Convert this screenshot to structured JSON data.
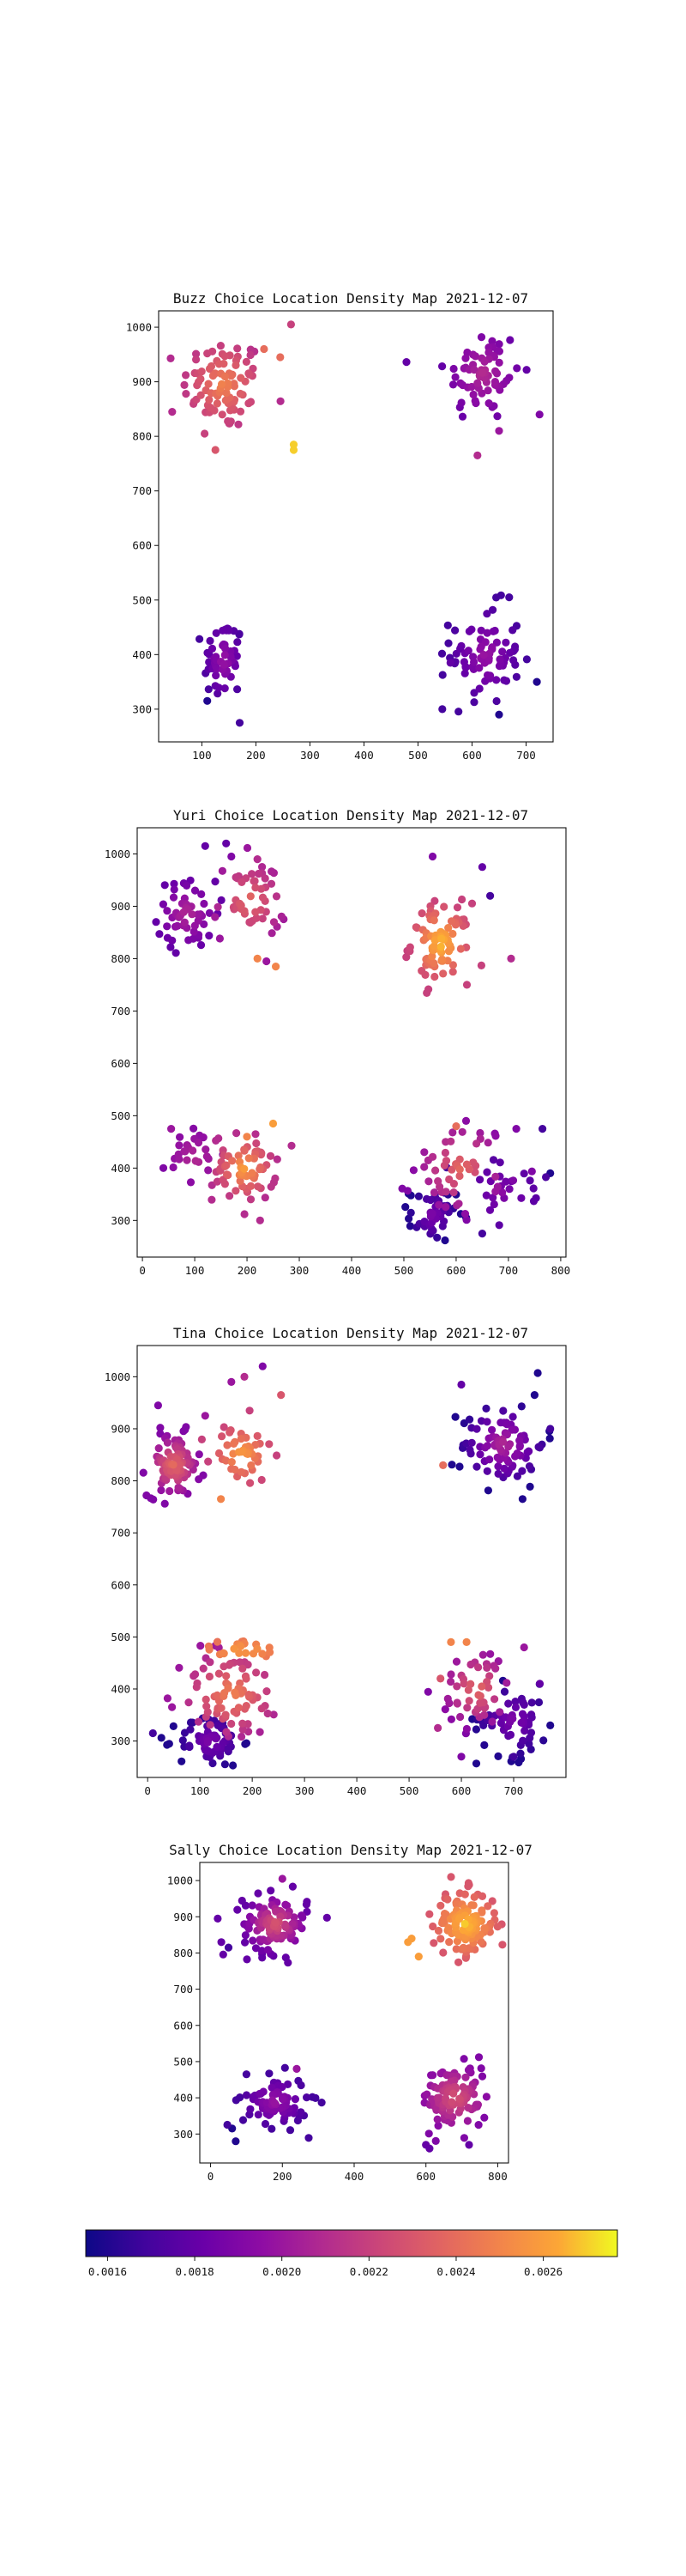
{
  "chart_data": [
    {
      "type": "scatter",
      "title": "Buzz Choice Location Density Map 2021-12-07",
      "xlim": [
        20,
        750
      ],
      "ylim": [
        240,
        1030
      ],
      "xticks": [
        100,
        200,
        300,
        400,
        500,
        600,
        700
      ],
      "yticks": [
        300,
        400,
        500,
        600,
        700,
        800,
        900,
        1000
      ],
      "clusters": [
        {
          "cx": 140,
          "cy": 895,
          "sx": 38,
          "sy": 42,
          "n": 90,
          "d0": 0.0021,
          "d1": 0.0025
        },
        {
          "cx": 620,
          "cy": 915,
          "sx": 35,
          "sy": 45,
          "n": 70,
          "d0": 0.0018,
          "d1": 0.0021
        },
        {
          "cx": 140,
          "cy": 390,
          "sx": 18,
          "sy": 38,
          "n": 55,
          "d0": 0.0017,
          "d1": 0.002
        },
        {
          "cx": 625,
          "cy": 400,
          "sx": 32,
          "sy": 45,
          "n": 80,
          "d0": 0.0017,
          "d1": 0.002
        }
      ],
      "points": [
        {
          "x": 265,
          "y": 1005,
          "d": 0.0022
        },
        {
          "x": 270,
          "y": 785,
          "d": 0.0027
        },
        {
          "x": 270,
          "y": 775,
          "d": 0.0027
        },
        {
          "x": 215,
          "y": 960,
          "d": 0.0024
        },
        {
          "x": 245,
          "y": 945,
          "d": 0.0024
        },
        {
          "x": 125,
          "y": 775,
          "d": 0.0023
        },
        {
          "x": 105,
          "y": 805,
          "d": 0.0022
        },
        {
          "x": 45,
          "y": 845,
          "d": 0.0021
        },
        {
          "x": 610,
          "y": 765,
          "d": 0.0021
        },
        {
          "x": 725,
          "y": 840,
          "d": 0.0019
        },
        {
          "x": 650,
          "y": 810,
          "d": 0.002
        },
        {
          "x": 545,
          "y": 300,
          "d": 0.0017
        },
        {
          "x": 650,
          "y": 290,
          "d": 0.0016
        },
        {
          "x": 720,
          "y": 350,
          "d": 0.0016
        },
        {
          "x": 170,
          "y": 275,
          "d": 0.0017
        },
        {
          "x": 110,
          "y": 315,
          "d": 0.0016
        },
        {
          "x": 560,
          "y": 385,
          "d": 0.0018
        }
      ]
    },
    {
      "type": "scatter",
      "title": "Yuri Choice Location Density Map 2021-12-07",
      "xlim": [
        -10,
        810
      ],
      "ylim": [
        230,
        1050
      ],
      "xticks": [
        0,
        100,
        200,
        300,
        400,
        500,
        600,
        700,
        800
      ],
      "yticks": [
        300,
        400,
        500,
        600,
        700,
        800,
        900,
        1000
      ],
      "clusters": [
        {
          "cx": 85,
          "cy": 885,
          "sx": 28,
          "sy": 32,
          "n": 55,
          "d0": 0.0018,
          "d1": 0.0021
        },
        {
          "cx": 205,
          "cy": 910,
          "sx": 35,
          "sy": 40,
          "n": 50,
          "d0": 0.002,
          "d1": 0.0024
        },
        {
          "cx": 570,
          "cy": 830,
          "sx": 28,
          "sy": 38,
          "n": 85,
          "d0": 0.0022,
          "d1": 0.0027
        },
        {
          "cx": 100,
          "cy": 420,
          "sx": 28,
          "sy": 28,
          "n": 25,
          "d0": 0.0019,
          "d1": 0.0021
        },
        {
          "cx": 195,
          "cy": 400,
          "sx": 30,
          "sy": 32,
          "n": 70,
          "d0": 0.0021,
          "d1": 0.0026
        },
        {
          "cx": 610,
          "cy": 400,
          "sx": 45,
          "sy": 45,
          "n": 55,
          "d0": 0.0019,
          "d1": 0.0024
        },
        {
          "cx": 555,
          "cy": 310,
          "sx": 22,
          "sy": 25,
          "n": 45,
          "d0": 0.0016,
          "d1": 0.0019
        },
        {
          "cx": 690,
          "cy": 350,
          "sx": 45,
          "sy": 45,
          "n": 25,
          "d0": 0.0017,
          "d1": 0.0019
        }
      ],
      "points": [
        {
          "x": 120,
          "y": 1015,
          "d": 0.0018
        },
        {
          "x": 160,
          "y": 1020,
          "d": 0.0018
        },
        {
          "x": 170,
          "y": 995,
          "d": 0.0019
        },
        {
          "x": 220,
          "y": 990,
          "d": 0.0021
        },
        {
          "x": 220,
          "y": 800,
          "d": 0.0025
        },
        {
          "x": 255,
          "y": 785,
          "d": 0.0025
        },
        {
          "x": 555,
          "y": 995,
          "d": 0.0019
        },
        {
          "x": 650,
          "y": 975,
          "d": 0.0018
        },
        {
          "x": 665,
          "y": 920,
          "d": 0.0017
        },
        {
          "x": 705,
          "y": 800,
          "d": 0.0021
        },
        {
          "x": 250,
          "y": 485,
          "d": 0.0026
        },
        {
          "x": 200,
          "y": 460,
          "d": 0.0025
        },
        {
          "x": 55,
          "y": 475,
          "d": 0.002
        },
        {
          "x": 40,
          "y": 400,
          "d": 0.0019
        },
        {
          "x": 225,
          "y": 300,
          "d": 0.0021
        },
        {
          "x": 600,
          "y": 480,
          "d": 0.0024
        },
        {
          "x": 715,
          "y": 475,
          "d": 0.0019
        },
        {
          "x": 765,
          "y": 475,
          "d": 0.0017
        },
        {
          "x": 780,
          "y": 390,
          "d": 0.0016
        },
        {
          "x": 650,
          "y": 275,
          "d": 0.0017
        }
      ]
    },
    {
      "type": "scatter",
      "title": "Tina Choice Location Density Map 2021-12-07",
      "xlim": [
        -20,
        800
      ],
      "ylim": [
        230,
        1060
      ],
      "xticks": [
        0,
        100,
        200,
        300,
        400,
        500,
        600,
        700
      ],
      "yticks": [
        300,
        400,
        500,
        600,
        700,
        800,
        900,
        1000
      ],
      "clusters": [
        {
          "cx": 50,
          "cy": 830,
          "sx": 25,
          "sy": 30,
          "n": 90,
          "d0": 0.0019,
          "d1": 0.0024
        },
        {
          "cx": 180,
          "cy": 850,
          "sx": 30,
          "sy": 30,
          "n": 45,
          "d0": 0.0022,
          "d1": 0.0026
        },
        {
          "cx": 680,
          "cy": 870,
          "sx": 40,
          "sy": 40,
          "n": 90,
          "d0": 0.0016,
          "d1": 0.0021
        },
        {
          "cx": 120,
          "cy": 300,
          "sx": 30,
          "sy": 25,
          "n": 70,
          "d0": 0.0016,
          "d1": 0.0019
        },
        {
          "cx": 160,
          "cy": 390,
          "sx": 50,
          "sy": 45,
          "n": 80,
          "d0": 0.002,
          "d1": 0.0025
        },
        {
          "cx": 180,
          "cy": 475,
          "sx": 40,
          "sy": 10,
          "n": 22,
          "d0": 0.0024,
          "d1": 0.0026
        },
        {
          "cx": 630,
          "cy": 400,
          "sx": 35,
          "sy": 40,
          "n": 50,
          "d0": 0.0019,
          "d1": 0.0024
        },
        {
          "cx": 700,
          "cy": 340,
          "sx": 35,
          "sy": 35,
          "n": 60,
          "d0": 0.0016,
          "d1": 0.0019
        }
      ],
      "points": [
        {
          "x": 10,
          "y": 315,
          "d": 0.0017
        },
        {
          "x": 20,
          "y": 945,
          "d": 0.0019
        },
        {
          "x": 110,
          "y": 925,
          "d": 0.002
        },
        {
          "x": 160,
          "y": 990,
          "d": 0.002
        },
        {
          "x": 185,
          "y": 1000,
          "d": 0.0021
        },
        {
          "x": 220,
          "y": 1020,
          "d": 0.0019
        },
        {
          "x": 255,
          "y": 965,
          "d": 0.0023
        },
        {
          "x": 195,
          "y": 935,
          "d": 0.0022
        },
        {
          "x": 140,
          "y": 765,
          "d": 0.0025
        },
        {
          "x": 600,
          "y": 985,
          "d": 0.0018
        },
        {
          "x": 740,
          "y": 965,
          "d": 0.0016
        },
        {
          "x": 565,
          "y": 830,
          "d": 0.0024
        },
        {
          "x": 770,
          "y": 900,
          "d": 0.0017
        },
        {
          "x": 580,
          "y": 490,
          "d": 0.0025
        },
        {
          "x": 610,
          "y": 490,
          "d": 0.0025
        },
        {
          "x": 560,
          "y": 420,
          "d": 0.0023
        },
        {
          "x": 555,
          "y": 325,
          "d": 0.0021
        },
        {
          "x": 600,
          "y": 270,
          "d": 0.0019
        },
        {
          "x": 770,
          "y": 330,
          "d": 0.0016
        },
        {
          "x": 750,
          "y": 410,
          "d": 0.0018
        },
        {
          "x": 720,
          "y": 480,
          "d": 0.002
        },
        {
          "x": 700,
          "y": 270,
          "d": 0.0017
        }
      ]
    },
    {
      "type": "scatter",
      "title": "Sally Choice Location Density Map 2021-12-07",
      "xlim": [
        -30,
        830
      ],
      "ylim": [
        220,
        1050
      ],
      "xticks": [
        0,
        200,
        400,
        600,
        800
      ],
      "yticks": [
        300,
        400,
        500,
        600,
        700,
        800,
        900,
        1000
      ],
      "clusters": [
        {
          "cx": 180,
          "cy": 880,
          "sx": 45,
          "sy": 40,
          "n": 110,
          "d0": 0.0018,
          "d1": 0.0023
        },
        {
          "cx": 710,
          "cy": 880,
          "sx": 45,
          "sy": 45,
          "n": 130,
          "d0": 0.0023,
          "d1": 0.0027
        },
        {
          "cx": 180,
          "cy": 390,
          "sx": 45,
          "sy": 35,
          "n": 80,
          "d0": 0.0017,
          "d1": 0.002
        },
        {
          "cx": 680,
          "cy": 400,
          "sx": 45,
          "sy": 45,
          "n": 110,
          "d0": 0.0019,
          "d1": 0.0023
        }
      ],
      "points": [
        {
          "x": 20,
          "y": 895,
          "d": 0.0018
        },
        {
          "x": 30,
          "y": 830,
          "d": 0.0018
        },
        {
          "x": 50,
          "y": 815,
          "d": 0.0017
        },
        {
          "x": 200,
          "y": 1005,
          "d": 0.002
        },
        {
          "x": 560,
          "y": 840,
          "d": 0.0026
        },
        {
          "x": 550,
          "y": 830,
          "d": 0.0026
        },
        {
          "x": 580,
          "y": 790,
          "d": 0.0026
        },
        {
          "x": 670,
          "y": 1010,
          "d": 0.0023
        },
        {
          "x": 70,
          "y": 280,
          "d": 0.0016
        },
        {
          "x": 60,
          "y": 315,
          "d": 0.0016
        },
        {
          "x": 100,
          "y": 465,
          "d": 0.0017
        },
        {
          "x": 240,
          "y": 480,
          "d": 0.002
        },
        {
          "x": 600,
          "y": 270,
          "d": 0.0018
        },
        {
          "x": 610,
          "y": 260,
          "d": 0.0018
        },
        {
          "x": 720,
          "y": 270,
          "d": 0.0018
        }
      ]
    }
  ],
  "colorbar": {
    "colormap": "plasma",
    "vmin": 0.00155,
    "vmax": 0.00277,
    "tick_values": [
      0.0016,
      0.0018,
      0.002,
      0.0022,
      0.0024,
      0.0026
    ],
    "tick_labels": [
      "0.0016",
      "0.0018",
      "0.0020",
      "0.0022",
      "0.0024",
      "0.0026"
    ]
  }
}
